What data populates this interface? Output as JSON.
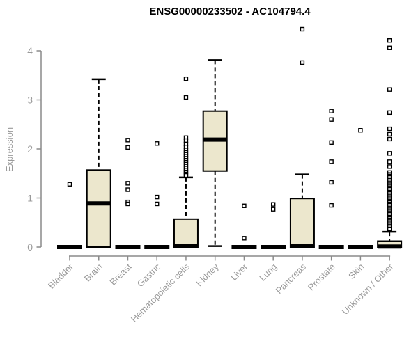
{
  "chart_data": {
    "type": "boxplot",
    "title": "ENSG00000233502 - AC104794.4",
    "ylabel": "Expression",
    "ylim": [
      0,
      4.5
    ],
    "yticks": [
      0,
      1,
      2,
      3,
      4
    ],
    "grid": false,
    "legend": "none",
    "categories": [
      "Bladder",
      "Brain",
      "Breast",
      "Gastric",
      "Hematopoietic cells",
      "Kidney",
      "Liver",
      "Lung",
      "Pancreas",
      "Prostate",
      "Skin",
      "Unknown / Other"
    ],
    "boxes": [
      {
        "category": "Bladder",
        "q1": 0,
        "median": 0,
        "q3": 0,
        "whisker_low": 0,
        "whisker_high": 0,
        "outliers": [
          1.28
        ]
      },
      {
        "category": "Brain",
        "q1": 0,
        "median": 0.89,
        "q3": 1.57,
        "whisker_low": 0,
        "whisker_high": 3.42,
        "outliers": []
      },
      {
        "category": "Breast",
        "q1": 0,
        "median": 0,
        "q3": 0,
        "whisker_low": 0,
        "whisker_high": 0,
        "outliers": [
          2.18,
          2.03,
          1.3,
          1.17,
          0.92,
          0.88
        ]
      },
      {
        "category": "Gastric",
        "q1": 0,
        "median": 0,
        "q3": 0,
        "whisker_low": 0,
        "whisker_high": 0,
        "outliers": [
          2.11,
          1.02,
          0.88
        ]
      },
      {
        "category": "Hematopoietic cells",
        "q1": 0,
        "median": 0.02,
        "q3": 0.57,
        "whisker_low": 0,
        "whisker_high": 1.42,
        "outliers": [
          3.43,
          3.05,
          2.23,
          2.17,
          2.1,
          2.04,
          1.98,
          1.93,
          1.89,
          1.85,
          1.81,
          1.77,
          1.73,
          1.69,
          1.65,
          1.61,
          1.57,
          1.53,
          1.49,
          1.46
        ]
      },
      {
        "category": "Kidney",
        "q1": 1.55,
        "median": 2.19,
        "q3": 2.77,
        "whisker_low": 0.02,
        "whisker_high": 3.81,
        "outliers": []
      },
      {
        "category": "Liver",
        "q1": 0,
        "median": 0,
        "q3": 0,
        "whisker_low": 0,
        "whisker_high": 0,
        "outliers": [
          0.84,
          0.18
        ]
      },
      {
        "category": "Lung",
        "q1": 0,
        "median": 0,
        "q3": 0,
        "whisker_low": 0,
        "whisker_high": 0,
        "outliers": [
          0.87,
          0.77
        ]
      },
      {
        "category": "Pancreas",
        "q1": 0,
        "median": 0.02,
        "q3": 0.99,
        "whisker_low": 0,
        "whisker_high": 1.48,
        "outliers": [
          4.44,
          3.76
        ]
      },
      {
        "category": "Prostate",
        "q1": 0,
        "median": 0,
        "q3": 0,
        "whisker_low": 0,
        "whisker_high": 0,
        "outliers": [
          2.77,
          2.6,
          2.13,
          1.74,
          1.32,
          0.85
        ]
      },
      {
        "category": "Skin",
        "q1": 0,
        "median": 0,
        "q3": 0,
        "whisker_low": 0,
        "whisker_high": 0,
        "outliers": [
          2.38
        ]
      },
      {
        "category": "Unknown / Other",
        "q1": 0,
        "median": 0.01,
        "q3": 0.12,
        "whisker_low": 0,
        "whisker_high": 0.31,
        "outliers": [
          4.21,
          4.06,
          3.21,
          2.74,
          2.41,
          2.3,
          2.2,
          1.91,
          1.74,
          1.64,
          1.52,
          1.48,
          1.45,
          1.42,
          1.39,
          1.36,
          1.33,
          1.3,
          1.27,
          1.24,
          1.21,
          1.18,
          1.15,
          1.12,
          1.09,
          1.06,
          1.03,
          1.0,
          0.97,
          0.94,
          0.91,
          0.88,
          0.85,
          0.82,
          0.79,
          0.76,
          0.73,
          0.7,
          0.67,
          0.64,
          0.61,
          0.58,
          0.55,
          0.52,
          0.49,
          0.46,
          0.43,
          0.4,
          0.37
        ]
      }
    ],
    "colors": {
      "box_fill": "#ece7cd",
      "box_stroke": "#000000",
      "median": "#000000",
      "axis": "#8a8a8a",
      "tick_label": "#9a9a9a",
      "title": "#000000",
      "background": "#ffffff"
    }
  }
}
